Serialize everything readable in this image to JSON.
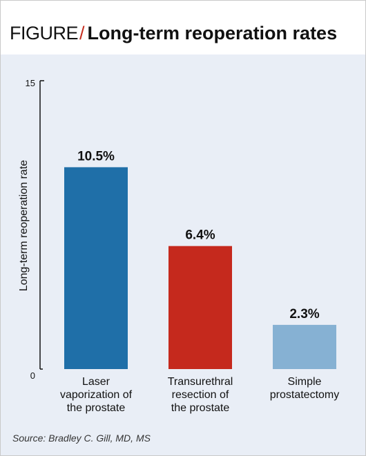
{
  "header": {
    "prefix": "FIGURE",
    "slash": "/",
    "title": "Long-term reoperation rates"
  },
  "chart_data": {
    "type": "bar",
    "title": "Long-term reoperation rates",
    "ylabel": "Long-term reoperation rate",
    "xlabel": "",
    "ylim": [
      0,
      15
    ],
    "yticks": [
      "0",
      "15"
    ],
    "categories": [
      [
        "Laser",
        "vaporization of",
        "the prostate"
      ],
      [
        "Transurethral",
        "resection of",
        "the prostate"
      ],
      [
        "Simple",
        "prostatectomy"
      ]
    ],
    "values": [
      10.5,
      6.4,
      2.3
    ],
    "data_labels": [
      "10.5%",
      "6.4%",
      "2.3%"
    ],
    "colors": [
      "#1f6fa8",
      "#c5291d",
      "#86b1d3"
    ],
    "grid": false,
    "legend": "none"
  },
  "footer": {
    "source": "Source: Bradley C. Gill, MD, MS"
  }
}
